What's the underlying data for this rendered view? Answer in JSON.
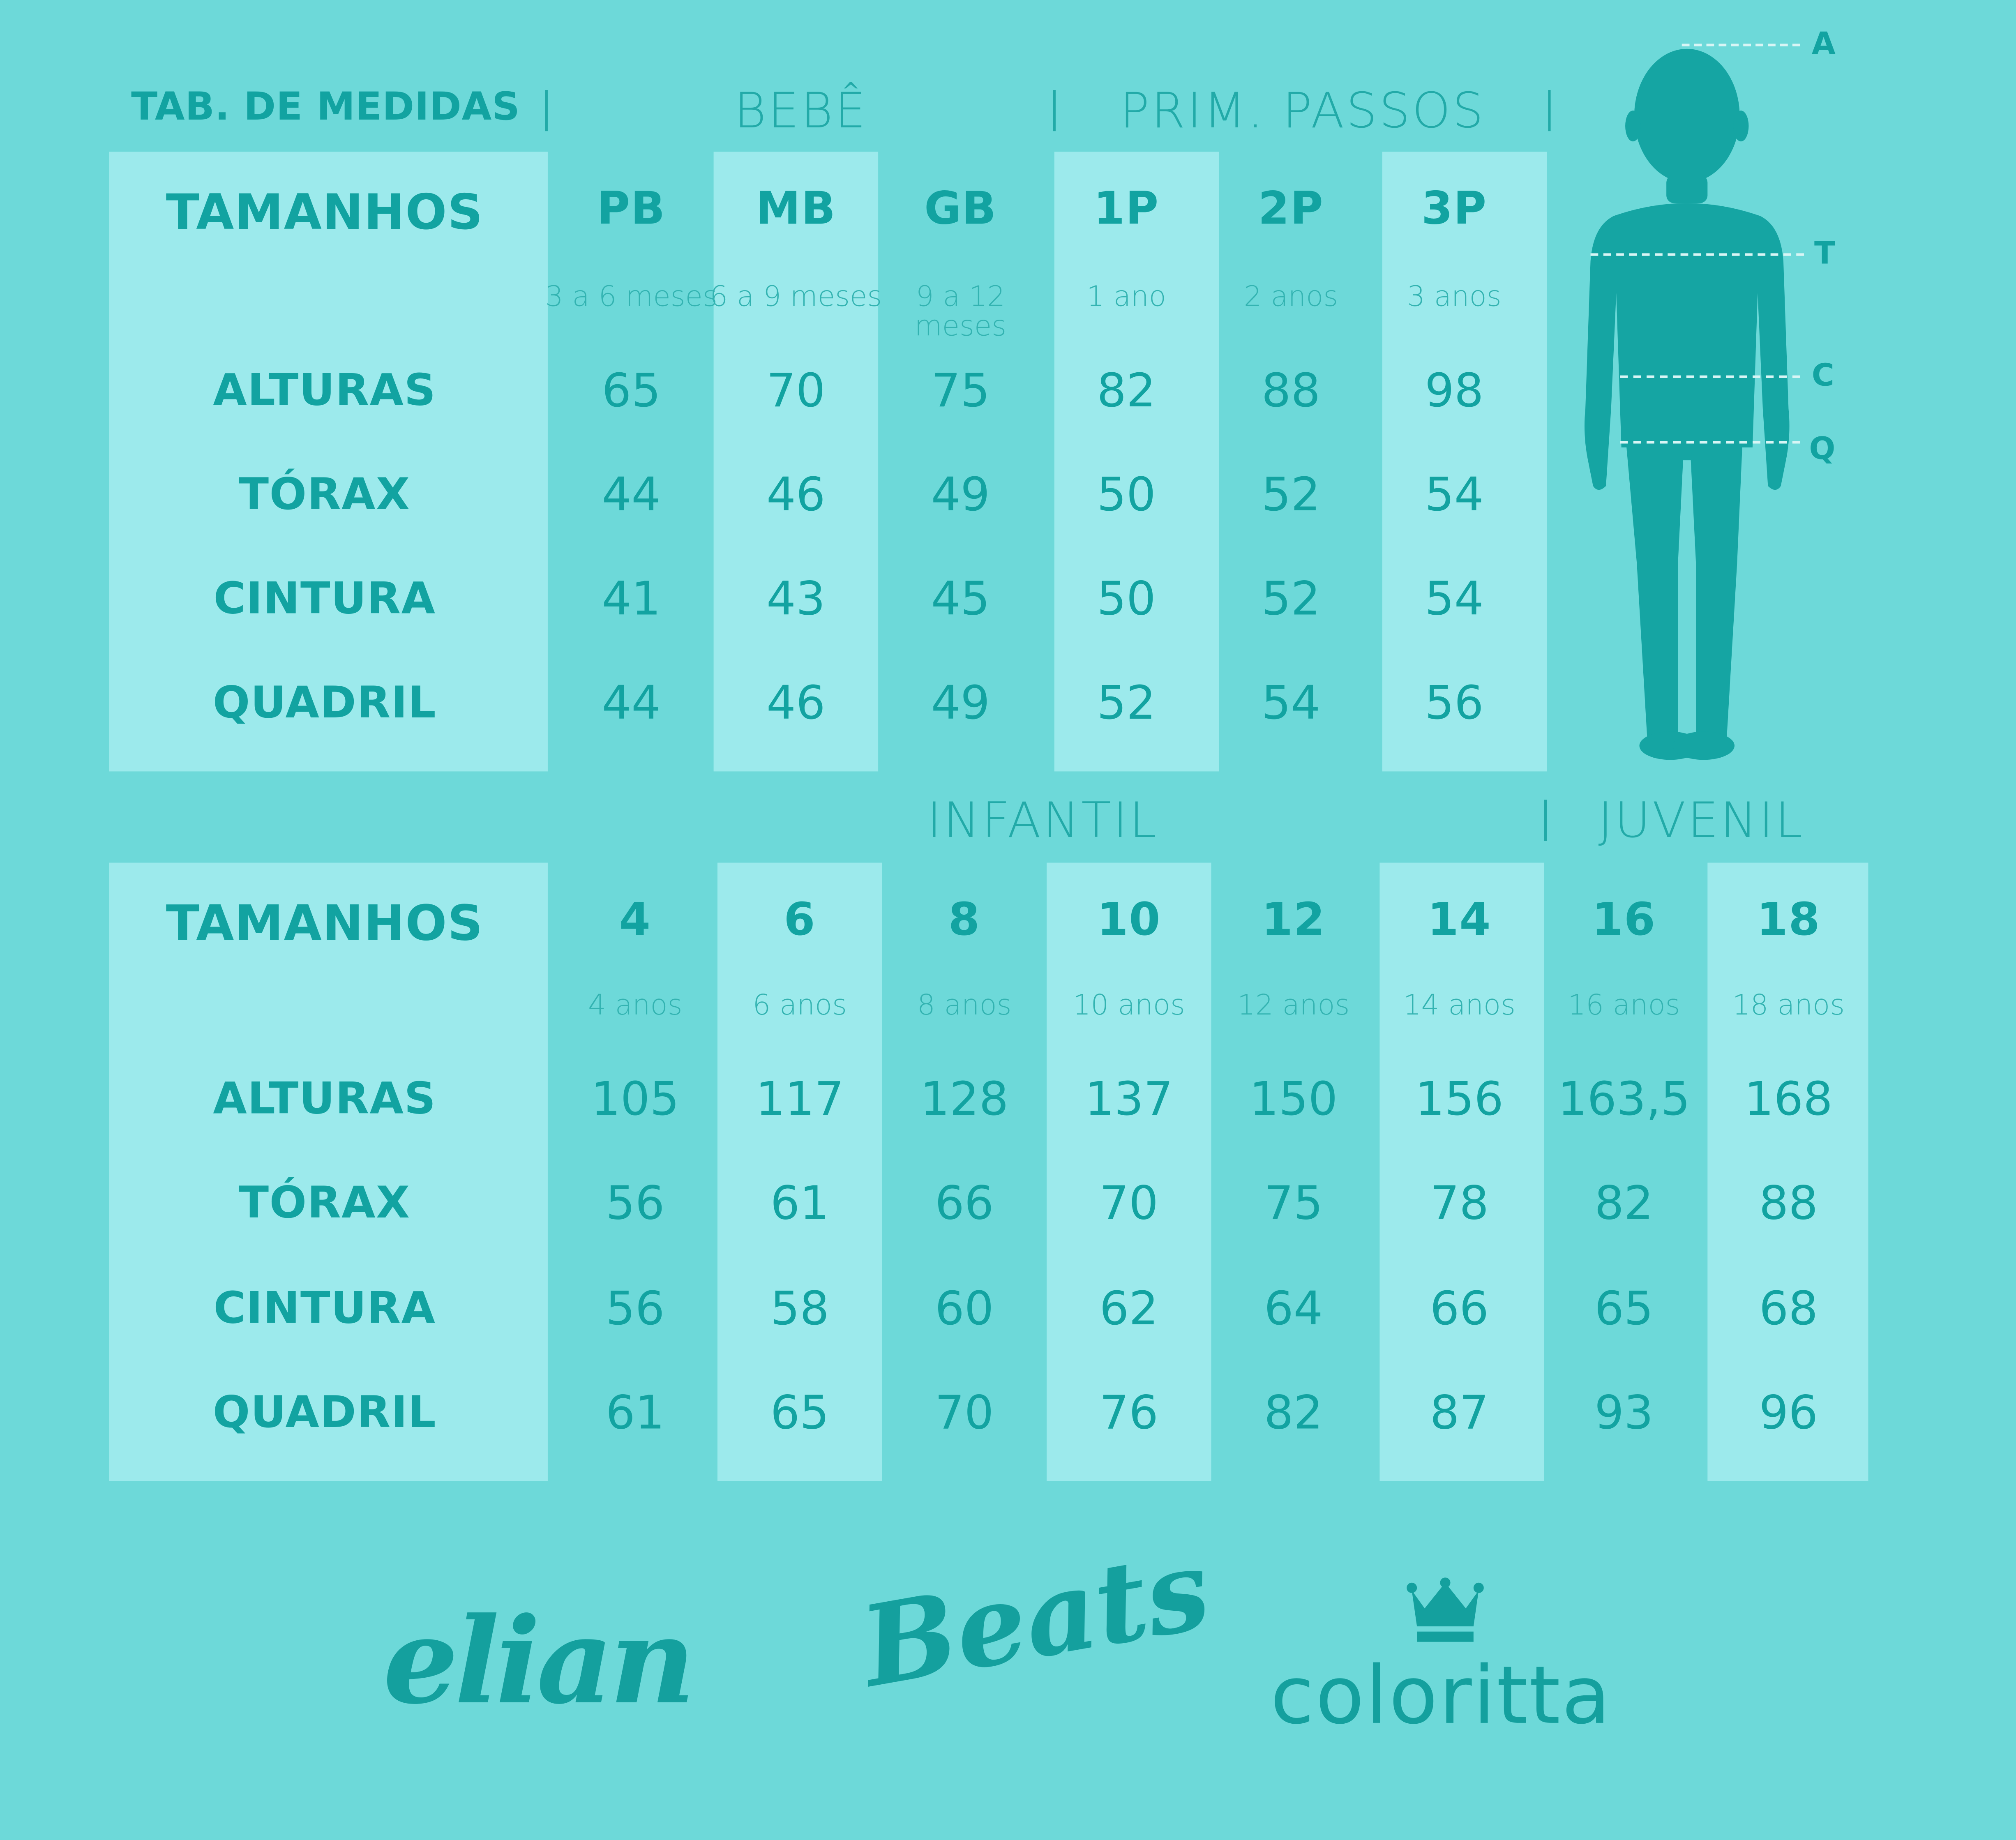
{
  "title": "TAB. DE MEDIDAS",
  "top_table": {
    "groups": [
      "BEBÊ",
      "PRIM. PASSOS"
    ],
    "header_label": "TAMANHOS",
    "row_labels": [
      "ALTURAS",
      "TÓRAX",
      "CINTURA",
      "QUADRIL"
    ],
    "sizes": [
      {
        "size": "PB",
        "age": "3 a 6 meses",
        "values": [
          "65",
          "44",
          "41",
          "44"
        ]
      },
      {
        "size": "MB",
        "age": "6 a 9 meses",
        "values": [
          "70",
          "46",
          "43",
          "46"
        ]
      },
      {
        "size": "GB",
        "age": "9 a 12 meses",
        "values": [
          "75",
          "49",
          "45",
          "49"
        ]
      },
      {
        "size": "1P",
        "age": "1 ano",
        "values": [
          "82",
          "50",
          "50",
          "52"
        ]
      },
      {
        "size": "2P",
        "age": "2 anos",
        "values": [
          "88",
          "52",
          "52",
          "54"
        ]
      },
      {
        "size": "3P",
        "age": "3 anos",
        "values": [
          "98",
          "54",
          "54",
          "56"
        ]
      }
    ]
  },
  "bottom_table": {
    "groups": [
      "INFANTIL",
      "JUVENIL"
    ],
    "header_label": "TAMANHOS",
    "row_labels": [
      "ALTURAS",
      "TÓRAX",
      "CINTURA",
      "QUADRIL"
    ],
    "sizes": [
      {
        "size": "4",
        "age": "4 anos",
        "values": [
          "105",
          "56",
          "56",
          "61"
        ]
      },
      {
        "size": "6",
        "age": "6 anos",
        "values": [
          "117",
          "61",
          "58",
          "65"
        ]
      },
      {
        "size": "8",
        "age": "8 anos",
        "values": [
          "128",
          "66",
          "60",
          "70"
        ]
      },
      {
        "size": "10",
        "age": "10 anos",
        "values": [
          "137",
          "70",
          "62",
          "76"
        ]
      },
      {
        "size": "12",
        "age": "12 anos",
        "values": [
          "150",
          "75",
          "64",
          "82"
        ]
      },
      {
        "size": "14",
        "age": "14 anos",
        "values": [
          "156",
          "78",
          "66",
          "87"
        ]
      },
      {
        "size": "16",
        "age": "16 anos",
        "values": [
          "163,5",
          "82",
          "65",
          "93"
        ]
      },
      {
        "size": "18",
        "age": "18 anos",
        "values": [
          "168",
          "88",
          "68",
          "96"
        ]
      }
    ]
  },
  "figure_labels": {
    "a": "A",
    "t": "T",
    "c": "C",
    "q": "Q"
  },
  "brands": [
    "elian",
    "Beats",
    "coloritta"
  ],
  "colors": {
    "background": "#6dd9d9",
    "panel": "#9ceaec",
    "text": "#12a3a1"
  }
}
